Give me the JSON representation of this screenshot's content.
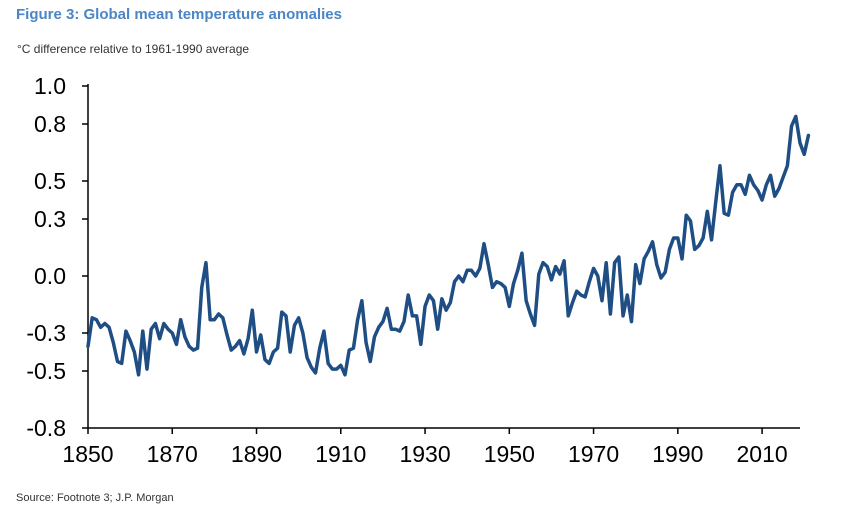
{
  "title": "Figure 3: Global mean temperature anomalies",
  "subtitle": "°C difference relative to 1961-1990 average",
  "source": "Source: Footnote 3; J.P. Morgan",
  "line_color": "#1f4e85",
  "chart_data": {
    "type": "line",
    "title": "Figure 3: Global mean temperature anomalies",
    "ylabel": "°C difference relative to 1961-1990 average",
    "xlabel": "",
    "xlim": [
      1850,
      2019
    ],
    "ylim": [
      -0.8,
      1.0
    ],
    "grid": false,
    "legend": "none",
    "x_ticks": [
      1850,
      1870,
      1890,
      1910,
      1930,
      1950,
      1970,
      1990,
      2010
    ],
    "y_ticks": [
      1.0,
      0.8,
      0.5,
      0.3,
      0.0,
      -0.3,
      -0.5,
      -0.8
    ],
    "y_tick_labels": [
      "1.0",
      "0.8",
      "0.5",
      "0.3",
      "0.0",
      "-0.3",
      "-0.5",
      "-0.8"
    ],
    "series": [
      {
        "start_year": 1850,
        "values": [
          -0.37,
          -0.22,
          -0.23,
          -0.27,
          -0.25,
          -0.27,
          -0.35,
          -0.45,
          -0.46,
          -0.29,
          -0.34,
          -0.4,
          -0.52,
          -0.29,
          -0.49,
          -0.28,
          -0.25,
          -0.33,
          -0.25,
          -0.28,
          -0.3,
          -0.36,
          -0.23,
          -0.32,
          -0.37,
          -0.39,
          -0.38,
          -0.06,
          0.07,
          -0.23,
          -0.23,
          -0.2,
          -0.22,
          -0.31,
          -0.39,
          -0.37,
          -0.34,
          -0.41,
          -0.33,
          -0.18,
          -0.4,
          -0.31,
          -0.44,
          -0.46,
          -0.4,
          -0.38,
          -0.19,
          -0.21,
          -0.4,
          -0.26,
          -0.22,
          -0.3,
          -0.43,
          -0.48,
          -0.51,
          -0.38,
          -0.29,
          -0.46,
          -0.49,
          -0.49,
          -0.47,
          -0.52,
          -0.39,
          -0.38,
          -0.23,
          -0.13,
          -0.35,
          -0.45,
          -0.32,
          -0.27,
          -0.24,
          -0.17,
          -0.28,
          -0.28,
          -0.29,
          -0.24,
          -0.1,
          -0.21,
          -0.21,
          -0.36,
          -0.16,
          -0.1,
          -0.13,
          -0.28,
          -0.12,
          -0.18,
          -0.14,
          -0.03,
          0.0,
          -0.03,
          0.03,
          0.03,
          0.0,
          0.04,
          0.17,
          0.06,
          -0.06,
          -0.03,
          -0.04,
          -0.06,
          -0.16,
          -0.04,
          0.03,
          0.12,
          -0.13,
          -0.2,
          -0.26,
          0.01,
          0.07,
          0.05,
          -0.02,
          0.05,
          0.01,
          0.08,
          -0.21,
          -0.14,
          -0.08,
          -0.1,
          -0.11,
          -0.03,
          0.04,
          0.0,
          -0.13,
          0.07,
          -0.2,
          0.07,
          0.1,
          -0.21,
          -0.1,
          -0.24,
          0.06,
          -0.04,
          0.09,
          0.13,
          0.18,
          0.06,
          -0.01,
          0.02,
          0.14,
          0.2,
          0.2,
          0.09,
          0.32,
          0.29,
          0.14,
          0.16,
          0.2,
          0.34,
          0.19,
          0.39,
          0.58,
          0.33,
          0.32,
          0.44,
          0.48,
          0.48,
          0.43,
          0.53,
          0.48,
          0.45,
          0.4,
          0.48,
          0.53,
          0.42,
          0.46,
          0.52,
          0.58,
          0.79,
          0.84,
          0.7,
          0.64,
          0.74
        ]
      }
    ]
  }
}
